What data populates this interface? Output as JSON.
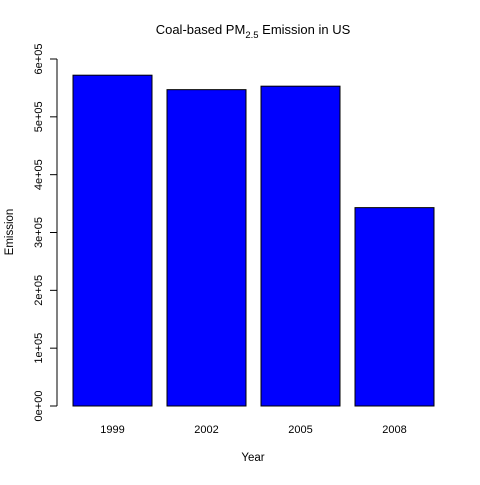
{
  "chart_data": {
    "type": "bar",
    "title_parts": {
      "before": "Coal-based PM",
      "subscript": "2.5",
      "after": " Emission in US"
    },
    "xlabel": "Year",
    "ylabel": "Emission",
    "categories": [
      "1999",
      "2002",
      "2005",
      "2008"
    ],
    "values": [
      572000,
      547000,
      553000,
      343000
    ],
    "ylim": [
      0,
      600000
    ],
    "yticks": [
      0,
      100000,
      200000,
      300000,
      400000,
      500000,
      600000
    ],
    "ytick_labels": [
      "0e+00",
      "1e+05",
      "2e+05",
      "3e+05",
      "4e+05",
      "5e+05",
      "6e+05"
    ],
    "grid": false,
    "legend": "none",
    "colors": {
      "bar_fill": "#0000ff",
      "bar_stroke": "#000000",
      "axis": "#000000",
      "background": "#ffffff"
    }
  }
}
